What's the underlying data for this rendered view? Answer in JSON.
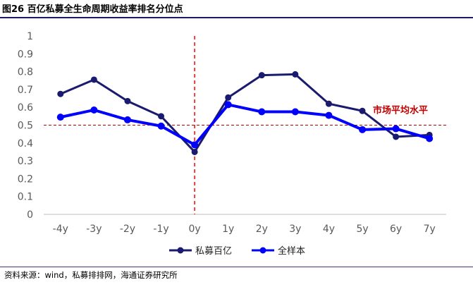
{
  "header": {
    "title": "图26 百亿私募全生命周期收益率排名分位点"
  },
  "footer": {
    "source": "资料来源：wind，私募排排网，海通证券研究所"
  },
  "chart_data": {
    "type": "line",
    "categories": [
      "-4y",
      "-3y",
      "-2y",
      "-1y",
      "0y",
      "1y",
      "2y",
      "3y",
      "4y",
      "5y",
      "6y",
      "7y"
    ],
    "series": [
      {
        "name": "私募百亿",
        "color": "#1a1a6e",
        "values": [
          0.675,
          0.755,
          0.635,
          0.55,
          0.35,
          0.655,
          0.78,
          0.785,
          0.62,
          0.58,
          0.435,
          0.445
        ]
      },
      {
        "name": "全样本",
        "color": "#0000ff",
        "values": [
          0.545,
          0.585,
          0.53,
          0.495,
          0.39,
          0.615,
          0.575,
          0.575,
          0.555,
          0.475,
          0.48,
          0.425
        ]
      }
    ],
    "ylim": [
      0,
      1
    ],
    "yticks": [
      "0",
      "0.1",
      "0.2",
      "0.3",
      "0.4",
      "0.5",
      "0.6",
      "0.7",
      "0.8",
      "0.9",
      "1"
    ],
    "reference_line": {
      "y": 0.5,
      "label": "市场平均水平",
      "color": "#c00000"
    },
    "vertical_marker": {
      "category": "0y",
      "color": "#ff0000"
    },
    "legend_position": "bottom",
    "grid": false
  }
}
